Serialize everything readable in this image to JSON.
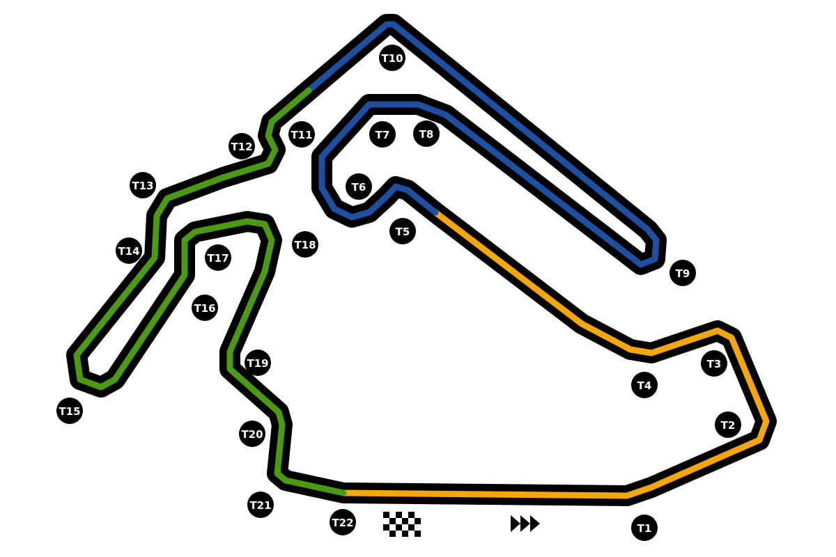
{
  "turns": [
    "T1",
    "T2",
    "T3",
    "T4",
    "T5",
    "T6",
    "T7",
    "T8",
    "T9",
    "T10",
    "T11",
    "T12",
    "T13",
    "T14",
    "T15",
    "T16",
    "T17",
    "T18",
    "T19",
    "T20",
    "T21",
    "T22"
  ]
}
